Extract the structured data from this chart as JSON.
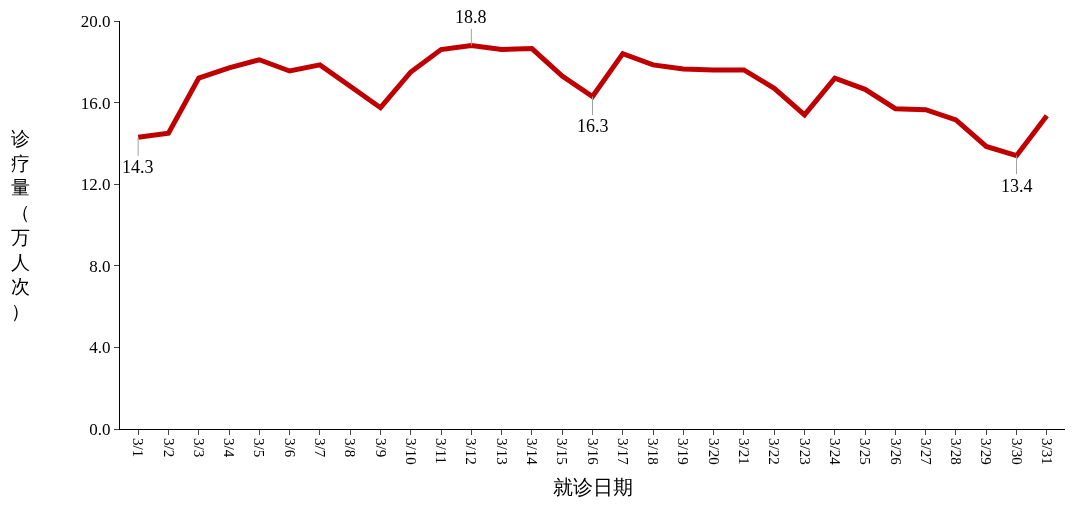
{
  "chart_data": {
    "type": "line",
    "xlabel": "就诊日期",
    "ylabel": "诊疗量（万人次）",
    "categories": [
      "3/1",
      "3/2",
      "3/3",
      "3/4",
      "3/5",
      "3/6",
      "3/7",
      "3/8",
      "3/9",
      "3/10",
      "3/11",
      "3/12",
      "3/13",
      "3/14",
      "3/15",
      "3/16",
      "3/17",
      "3/18",
      "3/19",
      "3/20",
      "3/21",
      "3/22",
      "3/23",
      "3/24",
      "3/25",
      "3/26",
      "3/27",
      "3/28",
      "3/29",
      "3/30",
      "3/31"
    ],
    "series": [
      {
        "color": "#c00000",
        "values": [
          14.3,
          14.5,
          17.2,
          17.7,
          18.1,
          17.55,
          17.85,
          16.8,
          15.75,
          17.5,
          18.6,
          18.8,
          18.6,
          18.65,
          17.3,
          16.3,
          18.4,
          17.85,
          17.65,
          17.6,
          17.6,
          16.7,
          15.4,
          17.2,
          16.65,
          15.7,
          15.65,
          15.15,
          13.85,
          13.4,
          15.35
        ],
        "value_labels": [
          "14.3",
          null,
          null,
          null,
          null,
          null,
          null,
          null,
          null,
          null,
          null,
          "18.8",
          null,
          null,
          null,
          "16.3",
          null,
          null,
          null,
          null,
          null,
          null,
          null,
          null,
          null,
          null,
          null,
          null,
          null,
          "13.4",
          null
        ]
      }
    ],
    "ylim": [
      0,
      20
    ],
    "yticks": [
      {
        "value": 0,
        "label": "0.0"
      },
      {
        "value": 4,
        "label": "4.0"
      },
      {
        "value": 8,
        "label": "8.0"
      },
      {
        "value": 12,
        "label": "12.0"
      },
      {
        "value": 16,
        "label": "16.0"
      },
      {
        "value": 20,
        "label": "20.0"
      }
    ],
    "marker": "none",
    "line_style": "solid"
  }
}
